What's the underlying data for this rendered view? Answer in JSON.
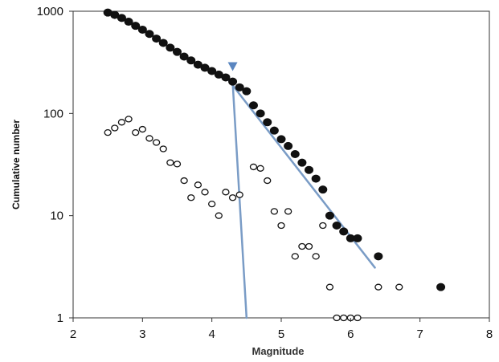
{
  "chart_data": {
    "type": "scatter",
    "xlabel": "Magnitude",
    "ylabel": "Cumulative number",
    "xlim": [
      2,
      8
    ],
    "ylim": [
      1,
      1000
    ],
    "yscale": "log",
    "x_ticks": [
      "2",
      "3",
      "4",
      "5",
      "6",
      "7",
      "8"
    ],
    "y_ticks": [
      {
        "value": 1,
        "label": "1"
      },
      {
        "value": 10,
        "label": "10"
      },
      {
        "value": 100,
        "label": "100"
      },
      {
        "value": 1000,
        "label": "1000"
      }
    ],
    "grid": false,
    "series": [
      {
        "marker": "filled-circle",
        "color": "#111111",
        "points": [
          [
            2.5,
            970
          ],
          [
            2.6,
            920
          ],
          [
            2.7,
            860
          ],
          [
            2.8,
            790
          ],
          [
            2.9,
            720
          ],
          [
            3.0,
            660
          ],
          [
            3.1,
            600
          ],
          [
            3.2,
            540
          ],
          [
            3.3,
            490
          ],
          [
            3.4,
            440
          ],
          [
            3.5,
            400
          ],
          [
            3.6,
            360
          ],
          [
            3.7,
            330
          ],
          [
            3.8,
            300
          ],
          [
            3.9,
            280
          ],
          [
            4.0,
            260
          ],
          [
            4.1,
            240
          ],
          [
            4.2,
            225
          ],
          [
            4.3,
            205
          ],
          [
            4.4,
            180
          ],
          [
            4.5,
            165
          ],
          [
            4.6,
            120
          ],
          [
            4.7,
            100
          ],
          [
            4.8,
            82
          ],
          [
            4.9,
            68
          ],
          [
            5.0,
            56
          ],
          [
            5.1,
            48
          ],
          [
            5.2,
            40
          ],
          [
            5.3,
            33
          ],
          [
            5.4,
            28
          ],
          [
            5.5,
            23
          ],
          [
            5.6,
            18
          ],
          [
            5.7,
            10
          ],
          [
            5.8,
            8
          ],
          [
            5.9,
            7
          ],
          [
            6.0,
            6
          ],
          [
            6.1,
            6
          ],
          [
            6.4,
            4
          ],
          [
            7.3,
            2
          ]
        ]
      },
      {
        "marker": "open-circle",
        "color": "#111111",
        "points": [
          [
            2.5,
            65
          ],
          [
            2.6,
            72
          ],
          [
            2.7,
            82
          ],
          [
            2.8,
            88
          ],
          [
            2.9,
            65
          ],
          [
            3.0,
            70
          ],
          [
            3.1,
            57
          ],
          [
            3.2,
            52
          ],
          [
            3.3,
            45
          ],
          [
            3.4,
            33
          ],
          [
            3.5,
            32
          ],
          [
            3.6,
            22
          ],
          [
            3.7,
            15
          ],
          [
            3.8,
            20
          ],
          [
            3.9,
            17
          ],
          [
            4.0,
            13
          ],
          [
            4.1,
            10
          ],
          [
            4.2,
            17
          ],
          [
            4.3,
            15
          ],
          [
            4.4,
            16
          ],
          [
            4.6,
            30
          ],
          [
            4.7,
            29
          ],
          [
            4.8,
            22
          ],
          [
            4.9,
            11
          ],
          [
            5.0,
            8
          ],
          [
            5.1,
            11
          ],
          [
            5.2,
            4
          ],
          [
            5.3,
            5
          ],
          [
            5.4,
            5
          ],
          [
            5.5,
            4
          ],
          [
            5.6,
            8
          ],
          [
            5.7,
            2
          ],
          [
            5.8,
            1
          ],
          [
            5.9,
            1
          ],
          [
            6.0,
            1
          ],
          [
            6.1,
            1
          ],
          [
            6.4,
            2
          ],
          [
            6.7,
            2
          ]
        ]
      }
    ],
    "fit_lines": [
      {
        "color": "#7a9cc6",
        "from": [
          4.2,
          230
        ],
        "to": [
          6.35,
          3.1
        ]
      },
      {
        "color": "#7a9cc6",
        "from": [
          4.3,
          200
        ],
        "to": [
          4.5,
          1
        ]
      }
    ],
    "annotations": [
      {
        "type": "triangle-marker",
        "color": "#5a86c0",
        "x": 4.3,
        "y": 290
      }
    ]
  }
}
